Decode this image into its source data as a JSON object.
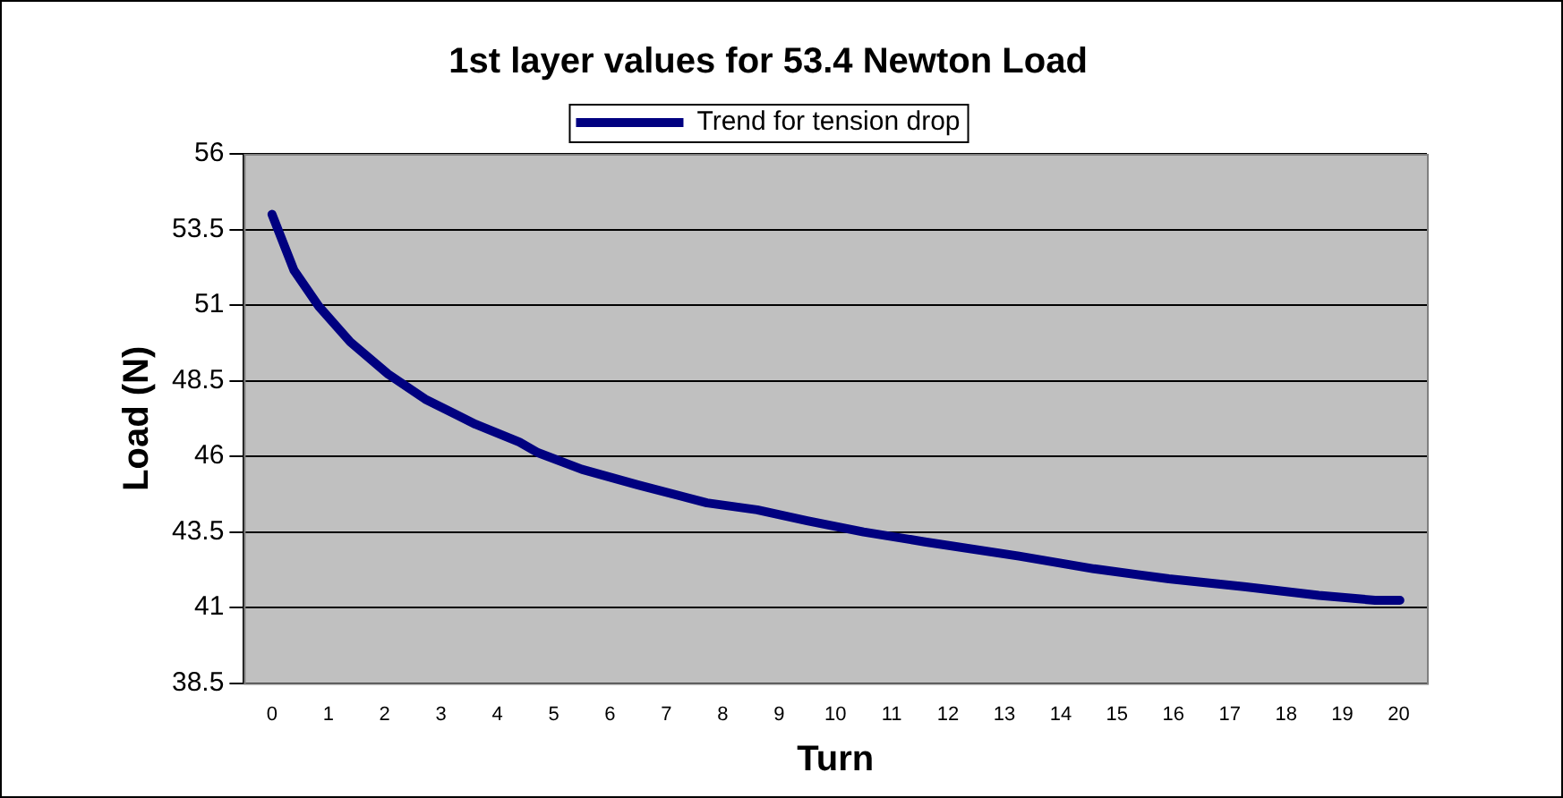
{
  "chart_data": {
    "type": "line",
    "title": "1st layer values for 53.4 Newton Load",
    "xlabel": "Turn",
    "ylabel": "Load (N)",
    "xlim": [
      -0.5,
      20.5
    ],
    "xticks": [
      0,
      1,
      2,
      3,
      4,
      5,
      6,
      7,
      8,
      9,
      10,
      11,
      12,
      13,
      14,
      15,
      16,
      17,
      18,
      19,
      20
    ],
    "ylim": [
      38.5,
      56
    ],
    "yticks": [
      38.5,
      41,
      43.5,
      46,
      48.5,
      51,
      53.5,
      56
    ],
    "grid": "y",
    "legend": "top",
    "marker": "none",
    "line_style": "solid",
    "series": [
      {
        "name": "Trend for tension drop",
        "color": "#000080",
        "x": [
          0,
          0.39,
          0.83,
          1.39,
          2.06,
          2.72,
          3.61,
          4.39,
          4.72,
          5.5,
          6.5,
          7.72,
          8.61,
          9.5,
          10.5,
          11.59,
          13.26,
          14.59,
          15.92,
          17.25,
          18.58,
          19.58,
          20.02
        ],
        "values": [
          54.0,
          52.15,
          50.96,
          49.78,
          48.72,
          47.89,
          47.06,
          46.47,
          46.12,
          45.57,
          45.05,
          44.46,
          44.23,
          43.87,
          43.5,
          43.17,
          42.7,
          42.28,
          41.95,
          41.69,
          41.4,
          41.24,
          41.24
        ]
      }
    ]
  }
}
